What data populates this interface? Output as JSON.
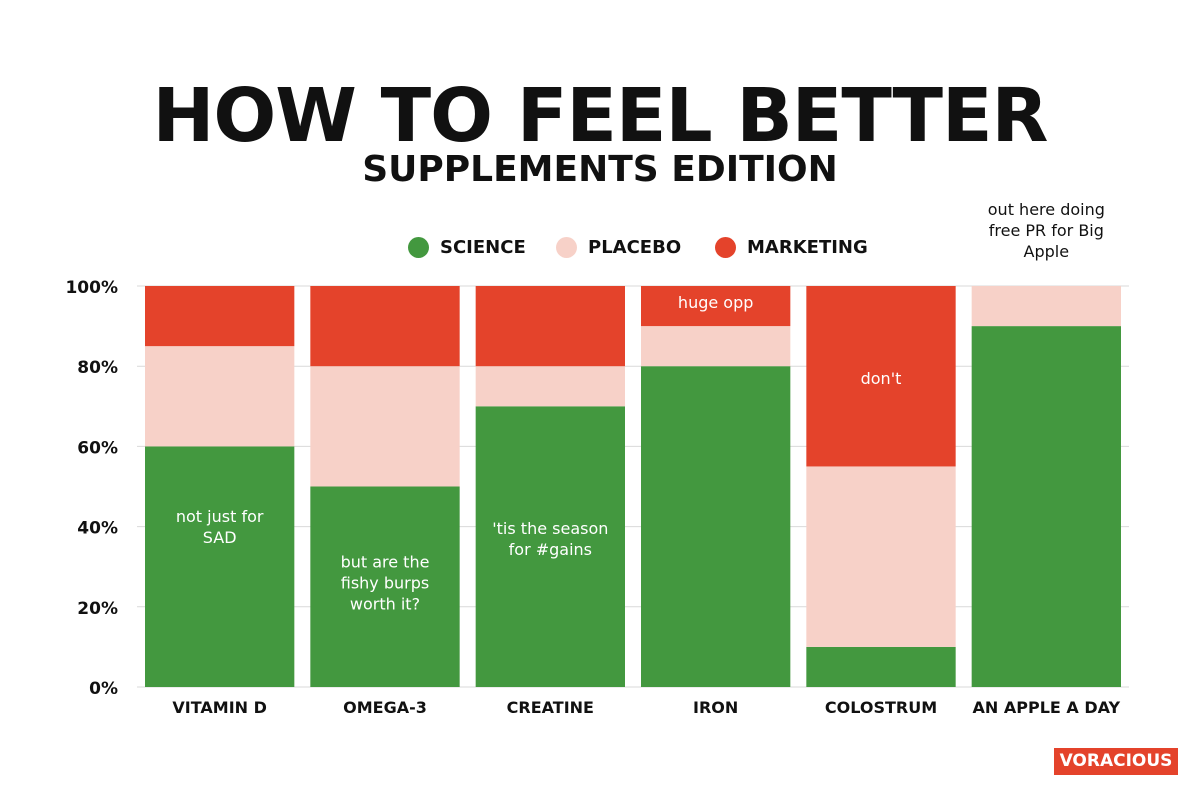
{
  "chart_data": {
    "type": "bar",
    "stacked": true,
    "title": "HOW TO FEEL BETTER",
    "subtitle": "SUPPLEMENTS EDITION",
    "categories": [
      "VITAMIN D",
      "OMEGA-3",
      "CREATINE",
      "IRON",
      "COLOSTRUM",
      "AN APPLE A DAY"
    ],
    "series": [
      {
        "name": "SCIENCE",
        "color": "#43983f",
        "values": [
          60,
          50,
          70,
          80,
          10,
          90
        ]
      },
      {
        "name": "PLACEBO",
        "color": "#f7d1c8",
        "values": [
          25,
          30,
          10,
          10,
          45,
          10
        ]
      },
      {
        "name": "MARKETING",
        "color": "#e4432b",
        "values": [
          15,
          20,
          20,
          10,
          45,
          0
        ]
      }
    ],
    "ylim": [
      0,
      100
    ],
    "yticks": [
      "0%",
      "20%",
      "40%",
      "60%",
      "80%",
      "100%"
    ],
    "grid": true,
    "legend_position": "top-center",
    "annotations": [
      {
        "category": "VITAMIN D",
        "y": 40,
        "text": "not just for SAD",
        "color": "#ffffff"
      },
      {
        "category": "OMEGA-3",
        "y": 26,
        "text": "but are the fishy burps worth it?",
        "color": "#ffffff"
      },
      {
        "category": "CREATINE",
        "y": 37,
        "text": "'tis the season for #gains",
        "color": "#ffffff"
      },
      {
        "category": "IRON",
        "y": 96,
        "text": "huge opp",
        "color": "#ffffff"
      },
      {
        "category": "COLOSTRUM",
        "y": 77,
        "text": "don't",
        "color": "#ffffff"
      },
      {
        "category": "AN APPLE A DAY",
        "y": 114,
        "text": "out here doing free PR for Big Apple",
        "color": "#111111"
      }
    ]
  },
  "brand": {
    "label": "VORACIOUS",
    "color": "#e4432b"
  }
}
